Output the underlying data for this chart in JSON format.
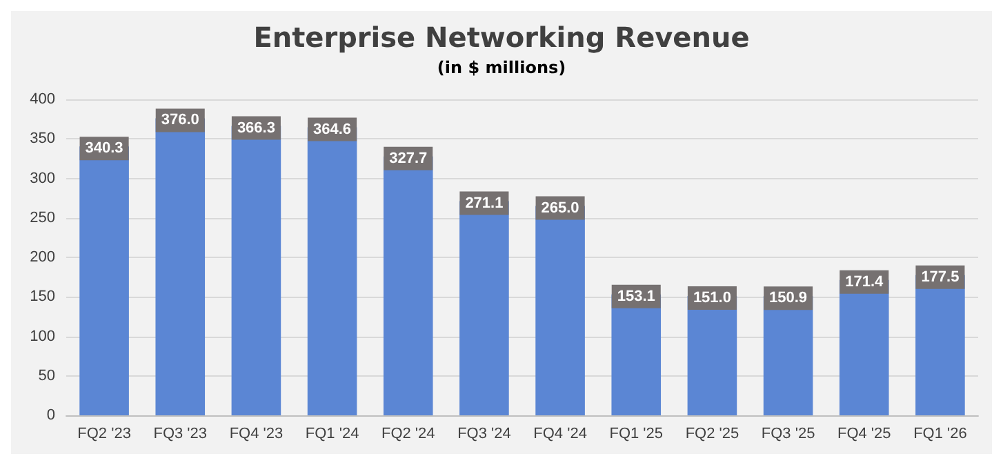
{
  "chart_data": {
    "type": "bar",
    "title": "Enterprise Networking Revenue",
    "subtitle": "(in $ millions)",
    "categories": [
      "FQ2 '23",
      "FQ3 '23",
      "FQ4 '23",
      "FQ1 '24",
      "FQ2 '24",
      "FQ3 '24",
      "FQ4 '24",
      "FQ1 '25",
      "FQ2 '25",
      "FQ3 '25",
      "FQ4 '25",
      "FQ1 '26"
    ],
    "values": [
      340.3,
      376.0,
      366.3,
      364.6,
      327.7,
      271.1,
      265.0,
      153.1,
      151.0,
      150.9,
      171.4,
      177.5
    ],
    "value_labels": [
      "340.3",
      "376.0",
      "366.3",
      "364.6",
      "327.7",
      "271.1",
      "265.0",
      "153.1",
      "151.0",
      "150.9",
      "171.4",
      "177.5"
    ],
    "color": "#5b86d4",
    "ylim": [
      0,
      400
    ],
    "yticks": [
      0,
      50,
      100,
      150,
      200,
      250,
      300,
      350,
      400
    ],
    "grid": "y"
  }
}
